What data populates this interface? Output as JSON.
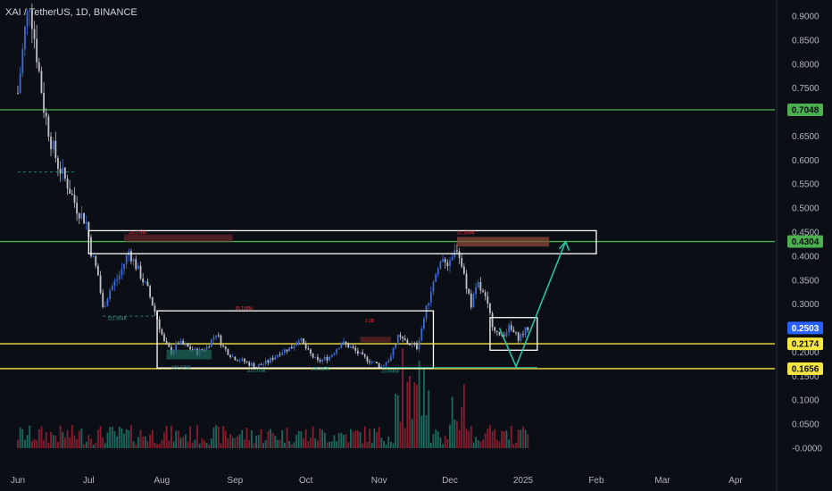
{
  "header": {
    "title": "XAI / TetherUS, 1D, BINANCE"
  },
  "colors": {
    "background": "#0c0e15",
    "up": "#3d6bd6",
    "down": "#c0c0c8",
    "green_line": "#4caf50",
    "yellow_line": "#f5e642",
    "teal_arrow": "#26c6a6",
    "box": "#ffffff",
    "vol_red": "#b0243a",
    "vol_teal": "#1e8a78"
  },
  "chart_data": {
    "type": "candlestick",
    "title": "XAI / TetherUS, 1D, BINANCE",
    "ylim": [
      -0.02,
      0.92
    ],
    "y_ticks": [
      "0.9000",
      "0.8500",
      "0.8000",
      "0.7500",
      "0.7000",
      "0.6500",
      "0.6000",
      "0.5500",
      "0.5000",
      "0.4500",
      "0.4000",
      "0.3500",
      "0.3000",
      "0.2500",
      "0.2000",
      "0.1500",
      "0.1000",
      "0.0500",
      "-0.0000"
    ],
    "x_ticks": [
      "Jun",
      "Jul",
      "Aug",
      "Sep",
      "Oct",
      "Nov",
      "Dec",
      "2025",
      "Feb",
      "Mar",
      "Apr"
    ],
    "levels": [
      {
        "value": 0.7048,
        "label": "0.7048",
        "color": "#4caf50",
        "text_color": "#0c0e15"
      },
      {
        "value": 0.4304,
        "label": "0.4304",
        "color": "#4caf50",
        "text_color": "#0c0e15"
      },
      {
        "value": 0.2174,
        "label": "0.2174",
        "color": "#f5e642",
        "text_color": "#0c0e15"
      },
      {
        "value": 0.1656,
        "label": "0.1656",
        "color": "#f5e642",
        "text_color": "#0c0e15"
      }
    ],
    "current_price": {
      "value": 0.2503,
      "label": "0.2503",
      "color": "#2962ff"
    },
    "price_path": [
      [
        "2024-06-01",
        0.74
      ],
      [
        "2024-06-04",
        0.87
      ],
      [
        "2024-06-06",
        0.93
      ],
      [
        "2024-06-09",
        0.82
      ],
      [
        "2024-06-12",
        0.71
      ],
      [
        "2024-06-15",
        0.64
      ],
      [
        "2024-06-18",
        0.59
      ],
      [
        "2024-06-22",
        0.55
      ],
      [
        "2024-06-26",
        0.5
      ],
      [
        "2024-06-30",
        0.47
      ],
      [
        "2024-07-02",
        0.41
      ],
      [
        "2024-07-05",
        0.36
      ],
      [
        "2024-07-07",
        0.29
      ],
      [
        "2024-07-10",
        0.33
      ],
      [
        "2024-07-14",
        0.36
      ],
      [
        "2024-07-18",
        0.41
      ],
      [
        "2024-07-22",
        0.37
      ],
      [
        "2024-07-26",
        0.33
      ],
      [
        "2024-07-30",
        0.27
      ],
      [
        "2024-08-02",
        0.22
      ],
      [
        "2024-08-05",
        0.2
      ],
      [
        "2024-08-08",
        0.22
      ],
      [
        "2024-08-12",
        0.21
      ],
      [
        "2024-08-16",
        0.2
      ],
      [
        "2024-08-20",
        0.21
      ],
      [
        "2024-08-24",
        0.24
      ],
      [
        "2024-08-27",
        0.21
      ],
      [
        "2024-08-31",
        0.19
      ],
      [
        "2024-09-05",
        0.18
      ],
      [
        "2024-09-10",
        0.17
      ],
      [
        "2024-09-15",
        0.18
      ],
      [
        "2024-09-20",
        0.2
      ],
      [
        "2024-09-25",
        0.21
      ],
      [
        "2024-09-28",
        0.23
      ],
      [
        "2024-10-02",
        0.2
      ],
      [
        "2024-10-06",
        0.18
      ],
      [
        "2024-10-11",
        0.19
      ],
      [
        "2024-10-16",
        0.22
      ],
      [
        "2024-10-20",
        0.21
      ],
      [
        "2024-10-25",
        0.19
      ],
      [
        "2024-10-29",
        0.18
      ],
      [
        "2024-11-02",
        0.17
      ],
      [
        "2024-11-06",
        0.19
      ],
      [
        "2024-11-09",
        0.23
      ],
      [
        "2024-11-13",
        0.22
      ],
      [
        "2024-11-17",
        0.21
      ],
      [
        "2024-11-20",
        0.27
      ],
      [
        "2024-11-24",
        0.35
      ],
      [
        "2024-11-28",
        0.4
      ],
      [
        "2024-12-01",
        0.38
      ],
      [
        "2024-12-04",
        0.42
      ],
      [
        "2024-12-07",
        0.36
      ],
      [
        "2024-12-10",
        0.3
      ],
      [
        "2024-12-13",
        0.34
      ],
      [
        "2024-12-16",
        0.31
      ],
      [
        "2024-12-19",
        0.26
      ],
      [
        "2024-12-22",
        0.23
      ],
      [
        "2024-12-26",
        0.25
      ],
      [
        "2024-12-30",
        0.23
      ],
      [
        "2025-01-03",
        0.25
      ]
    ],
    "volume_peak": 0.105,
    "annotations": [
      {
        "text": "34.874M",
        "x": "2024-07-18",
        "y": 0.445,
        "color": "#f23645"
      },
      {
        "text": "121.804K",
        "x": "2024-07-09",
        "y": 0.267,
        "color": "#26a69a"
      },
      {
        "text": "35.158M",
        "x": "2024-09-01",
        "y": 0.288,
        "color": "#f23645"
      },
      {
        "text": "1.1B",
        "x": "2024-10-26",
        "y": 0.262,
        "color": "#f23645"
      },
      {
        "text": "101.079K",
        "x": "2024-09-06",
        "y": 0.158,
        "color": "#26a69a"
      },
      {
        "text": "146.287K",
        "x": "2024-10-03",
        "y": 0.162,
        "color": "#26a69a"
      },
      {
        "text": "23.658M",
        "x": "2024-11-02",
        "y": 0.157,
        "color": "#26a69a"
      },
      {
        "text": "31.109M",
        "x": "2024-12-04",
        "y": 0.445,
        "color": "#f23645"
      },
      {
        "text": "122.375K",
        "x": "2024-08-05",
        "y": 0.165,
        "color": "#26a69a"
      }
    ],
    "boxes": [
      {
        "x0": "2024-07-01",
        "x1": "2025-02-01",
        "y0": 0.405,
        "y1": 0.453,
        "color": "#ffffff"
      },
      {
        "x0": "2024-07-30",
        "x1": "2024-11-24",
        "y0": 0.167,
        "y1": 0.286,
        "color": "#ffffff"
      },
      {
        "x0": "2024-12-18",
        "x1": "2025-01-07",
        "y0": 0.204,
        "y1": 0.272,
        "color": "#ffffff"
      }
    ],
    "arrow_path": [
      [
        "2024-12-22",
        0.25
      ],
      [
        "2024-12-29",
        0.17
      ],
      [
        "2025-01-19",
        0.43
      ]
    ],
    "grid": false,
    "legend": "none"
  }
}
